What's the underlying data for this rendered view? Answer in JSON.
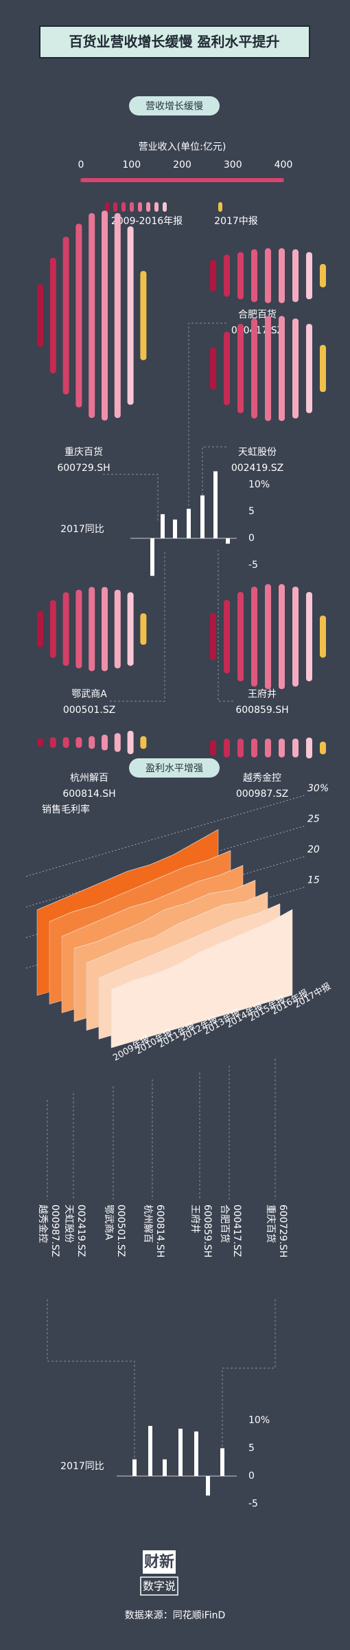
{
  "header": {
    "title": "百货业营收增长缓慢  盈利水平提升"
  },
  "chart_data": [
    {
      "type": "radial-bar",
      "section": "营收增长缓慢",
      "axis_label": "营业收入(单位:亿元)",
      "xlim": [
        0,
        400
      ],
      "xticks": [
        0,
        100,
        200,
        300,
        400
      ],
      "legend": [
        {
          "name": "2009-2016年报"
        },
        {
          "name": "2017中报"
        }
      ],
      "colors": [
        "#b0173f",
        "#c42a52",
        "#d43f67",
        "#e0597d",
        "#e87494",
        "#ef90ab",
        "#f4abc0",
        "#f8c6d5",
        "#f0c04a"
      ],
      "axis_color": "#d8456e",
      "groups": [
        {
          "name": "重庆百货",
          "code": "600729.SH",
          "values": [
            124,
            228,
            311,
            362,
            404,
            414,
            404,
            352,
            176
          ]
        },
        {
          "name": "合肥百货",
          "code": "000417.SZ",
          "values": [
            62,
            83,
            93,
            104,
            108,
            108,
            104,
            93,
            46
          ]
        },
        {
          "name": "天虹股份",
          "code": "002419.SZ",
          "values": [
            83,
            145,
            176,
            197,
            207,
            207,
            197,
            176,
            93
          ]
        },
        {
          "name": "鄂武商A",
          "code": "000501.SZ",
          "values": [
            72,
            114,
            145,
            155,
            166,
            166,
            155,
            145,
            62
          ]
        },
        {
          "name": "王府井",
          "code": "600859.SH",
          "values": [
            93,
            145,
            176,
            197,
            207,
            207,
            197,
            176,
            83
          ]
        },
        {
          "name": "杭州解百",
          "code": "600814.SH",
          "values": [
            17,
            21,
            21,
            21,
            25,
            31,
            37,
            46,
            25
          ]
        },
        {
          "name": "越秀金控",
          "code": "000987.SZ",
          "values": [
            31,
            37,
            37,
            37,
            37,
            37,
            37,
            41,
            25
          ]
        }
      ]
    },
    {
      "type": "bar",
      "label": "2017同比",
      "ylim": [
        -10,
        15
      ],
      "yticks": [
        {
          "value": 10,
          "label": "10%"
        },
        5,
        0,
        -5
      ],
      "color": "#ffffff",
      "values": [
        -7,
        4.5,
        3.5,
        5.5,
        8,
        12.5,
        -1
      ]
    },
    {
      "type": "layered-area",
      "section": "盈利水平增强",
      "axis_label": "销售毛利率",
      "categories": [
        "2009年报",
        "2010年报",
        "2011年报",
        "2012年报",
        "2013年报",
        "2014年报",
        "2015年报",
        "2016年报",
        "2017中报"
      ],
      "ylim": [
        10,
        30
      ],
      "yticks": [
        15,
        20,
        25,
        {
          "value": 30,
          "label": "30%"
        }
      ],
      "series": [
        {
          "name": "越秀金控",
          "code": "000987.SZ",
          "color": "#f26a1b",
          "values": [
            24,
            24.5,
            25,
            25.5,
            26,
            26,
            26.5,
            27.5,
            28.5
          ]
        },
        {
          "name": "天虹股份",
          "code": "002419.SZ",
          "color": "#f5823a",
          "values": [
            23.5,
            24,
            24,
            24.5,
            25,
            25.5,
            26,
            26,
            26.5
          ]
        },
        {
          "name": "鄂武商A",
          "code": "000501.SZ",
          "color": "#f89a5a",
          "values": [
            22.5,
            23,
            23.5,
            24,
            24,
            24.5,
            25,
            25,
            25.5
          ]
        },
        {
          "name": "杭州解百",
          "code": "600814.SH",
          "color": "#f9ae78",
          "values": [
            22,
            22,
            22.5,
            23,
            24,
            24,
            24.5,
            24,
            24.5
          ]
        },
        {
          "name": "王府井",
          "code": "600859.SH",
          "color": "#fbc49b",
          "values": [
            21,
            21.5,
            22,
            22,
            23,
            23.5,
            24,
            23.5,
            24
          ]
        },
        {
          "name": "合肥百货",
          "code": "000417.SZ",
          "color": "#fcd7bd",
          "values": [
            20,
            20.5,
            21,
            21.5,
            22,
            22.5,
            23,
            23,
            23.5
          ]
        },
        {
          "name": "重庆百货",
          "code": "600729.SH",
          "color": "#fde8d9",
          "values": [
            19.5,
            20,
            20,
            20.5,
            21.5,
            22,
            22.5,
            23,
            24
          ]
        }
      ]
    },
    {
      "type": "bar",
      "label": "2017同比",
      "ylim": [
        -10,
        15
      ],
      "yticks": [
        {
          "value": 10,
          "label": "10%"
        },
        5,
        0,
        -5
      ],
      "color": "#ffffff",
      "values": [
        3,
        9,
        3,
        8.5,
        8,
        -3.5,
        5
      ]
    }
  ],
  "logo": {
    "line1": "财新",
    "line2": "数字说"
  },
  "source": "数据来源：同花顺iFinD"
}
